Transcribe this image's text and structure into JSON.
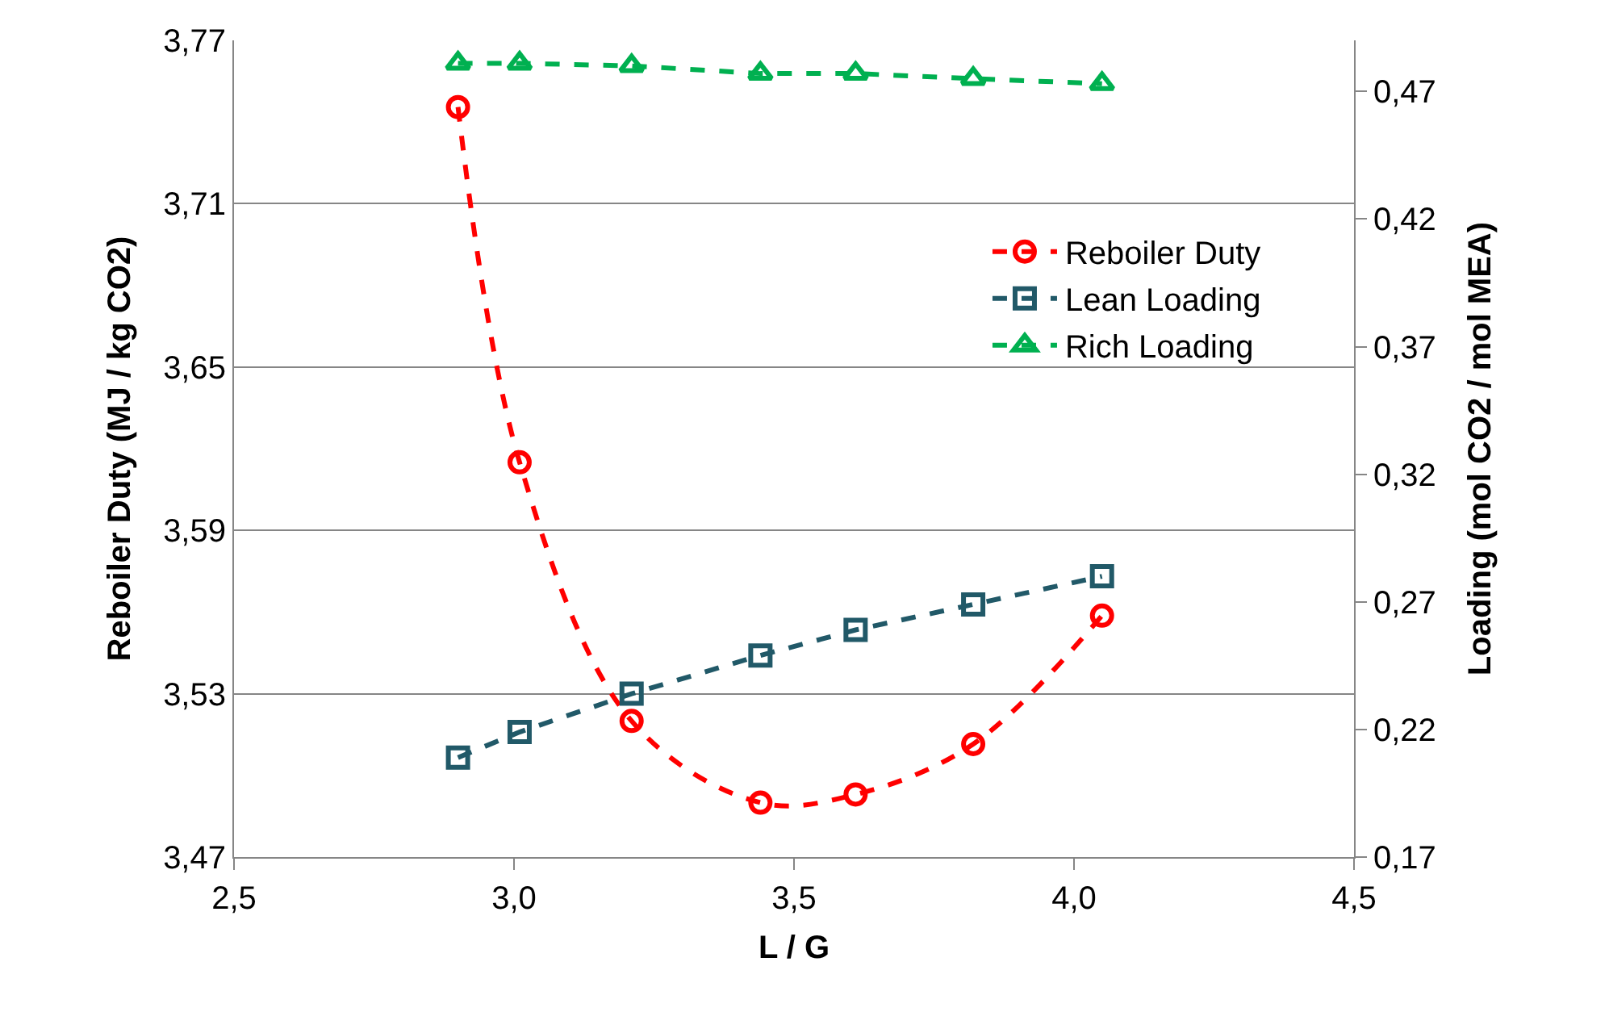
{
  "chart_data": {
    "type": "line",
    "xlabel": "L / G",
    "ylabel": "Reboiler Duty (MJ / kg CO2)",
    "y2label": "Loading (mol CO2 / mol MEA)",
    "x": [
      2.9,
      3.01,
      3.21,
      3.44,
      3.61,
      3.82,
      4.05
    ],
    "series": [
      {
        "name": "Reboiler Duty",
        "color": "#ff0000",
        "marker": "circle",
        "values": [
          3.7455,
          3.615,
          3.52,
          3.49,
          3.493,
          3.5115,
          3.5587
        ]
      },
      {
        "name": "Lean Loading",
        "color": "#215968",
        "marker": "square",
        "axis": "y2",
        "values": [
          0.209,
          0.219,
          0.234,
          0.249,
          0.259,
          0.269,
          0.28
        ]
      },
      {
        "name": "Rich Loading",
        "color": "#00b050",
        "marker": "triangle",
        "axis": "y2",
        "values": [
          0.481,
          0.481,
          0.48,
          0.477,
          0.477,
          0.475,
          0.473
        ]
      }
    ],
    "xlim": [
      2.5,
      4.5
    ],
    "xticks": [
      {
        "value": 2.5,
        "label": "2,5"
      },
      {
        "value": 3.0,
        "label": "3,0"
      },
      {
        "value": 3.5,
        "label": "3,5"
      },
      {
        "value": 4.0,
        "label": "4,0"
      },
      {
        "value": 4.5,
        "label": "4,5"
      }
    ],
    "ylim": [
      3.47,
      3.77
    ],
    "yticks": [
      {
        "value": 3.47,
        "label": "3,47"
      },
      {
        "value": 3.53,
        "label": "3,53"
      },
      {
        "value": 3.59,
        "label": "3,59"
      },
      {
        "value": 3.65,
        "label": "3,65"
      },
      {
        "value": 3.71,
        "label": "3,71"
      },
      {
        "value": 3.77,
        "label": "3,77"
      }
    ],
    "y2lim": [
      0.17,
      0.49
    ],
    "y2ticks": [
      {
        "value": 0.17,
        "label": "0,17"
      },
      {
        "value": 0.22,
        "label": "0,22"
      },
      {
        "value": 0.27,
        "label": "0,27"
      },
      {
        "value": 0.32,
        "label": "0,32"
      },
      {
        "value": 0.37,
        "label": "0,37"
      },
      {
        "value": 0.42,
        "label": "0,42"
      },
      {
        "value": 0.47,
        "label": "0,47"
      }
    ],
    "grid": "y",
    "legend": "right",
    "line_style": "dashed"
  }
}
